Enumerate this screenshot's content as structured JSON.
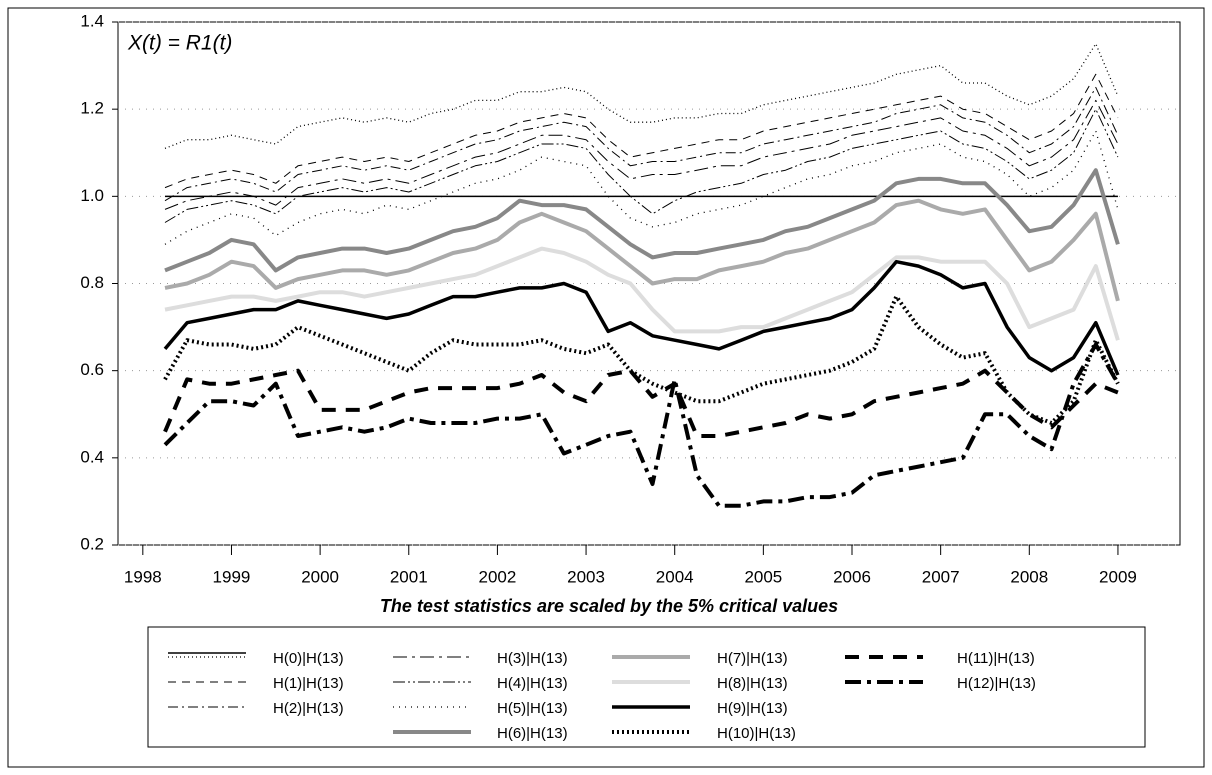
{
  "chart_data": {
    "type": "line",
    "annotation": "X(t) = R1(t)",
    "xlabel": "The test statistics are scaled by the 5% critical values",
    "xlim": [
      1997.72,
      2009.7
    ],
    "xticks": [
      1998,
      1999,
      2000,
      2001,
      2002,
      2003,
      2004,
      2005,
      2006,
      2007,
      2008,
      2009
    ],
    "ylim": [
      0.2,
      1.4
    ],
    "yticks": [
      0.2,
      0.4,
      0.6,
      0.8,
      {
        "value": 1.0,
        "label": "1.0"
      },
      1.2,
      1.4
    ],
    "grid": true,
    "reference_line": 1,
    "x": [
      1998.25,
      1998.5,
      1998.75,
      1999,
      1999.25,
      1999.5,
      1999.75,
      2000,
      2000.25,
      2000.5,
      2000.75,
      2001,
      2001.25,
      2001.5,
      2001.75,
      2002,
      2002.25,
      2002.5,
      2002.75,
      2003,
      2003.25,
      2003.5,
      2003.75,
      2004,
      2004.25,
      2004.5,
      2004.75,
      2005,
      2005.25,
      2005.5,
      2005.75,
      2006,
      2006.25,
      2006.5,
      2006.75,
      2007,
      2007.25,
      2007.5,
      2007.75,
      2008,
      2008.25,
      2008.5,
      2008.75,
      2009
    ],
    "series": [
      {
        "name": "H(0)|H(13)",
        "color": "#000000",
        "dash": "1,3",
        "width": 1.3,
        "values": [
          1.11,
          1.13,
          1.13,
          1.14,
          1.13,
          1.12,
          1.16,
          1.17,
          1.18,
          1.17,
          1.18,
          1.17,
          1.19,
          1.2,
          1.22,
          1.22,
          1.24,
          1.24,
          1.25,
          1.24,
          1.2,
          1.17,
          1.17,
          1.18,
          1.18,
          1.19,
          1.19,
          1.21,
          1.22,
          1.23,
          1.24,
          1.25,
          1.26,
          1.28,
          1.29,
          1.3,
          1.26,
          1.26,
          1.23,
          1.21,
          1.23,
          1.27,
          1.35,
          1.23
        ]
      },
      {
        "name": "H(1)|H(13)",
        "color": "#000000",
        "dash": "8,6",
        "width": 1,
        "values": [
          1.02,
          1.04,
          1.05,
          1.06,
          1.05,
          1.03,
          1.07,
          1.08,
          1.09,
          1.08,
          1.09,
          1.08,
          1.1,
          1.12,
          1.14,
          1.15,
          1.17,
          1.18,
          1.19,
          1.18,
          1.13,
          1.09,
          1.1,
          1.11,
          1.12,
          1.13,
          1.13,
          1.15,
          1.16,
          1.17,
          1.18,
          1.19,
          1.2,
          1.21,
          1.22,
          1.23,
          1.2,
          1.19,
          1.16,
          1.13,
          1.15,
          1.19,
          1.28,
          1.18
        ]
      },
      {
        "name": "H(2)|H(13)",
        "color": "#000000",
        "dash": "10,4,2,4",
        "width": 1,
        "values": [
          0.99,
          1.02,
          1.03,
          1.04,
          1.03,
          1.01,
          1.05,
          1.06,
          1.07,
          1.06,
          1.07,
          1.06,
          1.08,
          1.1,
          1.12,
          1.13,
          1.15,
          1.16,
          1.17,
          1.16,
          1.11,
          1.07,
          1.08,
          1.08,
          1.09,
          1.1,
          1.1,
          1.12,
          1.13,
          1.14,
          1.15,
          1.16,
          1.17,
          1.19,
          1.2,
          1.21,
          1.18,
          1.17,
          1.14,
          1.1,
          1.12,
          1.16,
          1.25,
          1.14
        ]
      },
      {
        "name": "H(3)|H(13)",
        "color": "#000000",
        "dash": "14,5,3,5",
        "width": 1,
        "values": [
          0.97,
          0.99,
          1.0,
          1.01,
          1.0,
          0.98,
          1.02,
          1.03,
          1.04,
          1.03,
          1.04,
          1.03,
          1.05,
          1.07,
          1.09,
          1.1,
          1.12,
          1.14,
          1.14,
          1.13,
          1.08,
          1.04,
          1.05,
          1.05,
          1.06,
          1.07,
          1.07,
          1.09,
          1.1,
          1.11,
          1.12,
          1.14,
          1.15,
          1.16,
          1.17,
          1.18,
          1.15,
          1.14,
          1.11,
          1.07,
          1.09,
          1.13,
          1.22,
          1.12
        ]
      },
      {
        "name": "H(4)|H(13)",
        "color": "#000000",
        "dash": "12,3,2,3,2,3",
        "width": 1,
        "values": [
          0.94,
          0.97,
          0.98,
          0.99,
          0.98,
          0.96,
          1.0,
          1.01,
          1.02,
          1.01,
          1.02,
          1.01,
          1.03,
          1.05,
          1.07,
          1.08,
          1.1,
          1.12,
          1.12,
          1.11,
          1.05,
          1.0,
          0.96,
          0.99,
          1.01,
          1.02,
          1.03,
          1.05,
          1.06,
          1.08,
          1.09,
          1.11,
          1.12,
          1.13,
          1.14,
          1.15,
          1.12,
          1.11,
          1.08,
          1.04,
          1.06,
          1.1,
          1.2,
          1.09
        ]
      },
      {
        "name": "H(5)|H(13)",
        "color": "#000000",
        "dash": "1,5",
        "width": 1.3,
        "values": [
          0.89,
          0.92,
          0.94,
          0.96,
          0.95,
          0.91,
          0.94,
          0.96,
          0.97,
          0.96,
          0.98,
          0.97,
          0.99,
          1.01,
          1.03,
          1.04,
          1.06,
          1.09,
          1.08,
          1.07,
          1.0,
          0.95,
          0.93,
          0.94,
          0.96,
          0.97,
          0.98,
          1.0,
          1.02,
          1.04,
          1.05,
          1.07,
          1.08,
          1.1,
          1.11,
          1.12,
          1.09,
          1.08,
          1.05,
          1.0,
          1.02,
          1.06,
          1.15,
          0.97
        ]
      },
      {
        "name": "H(6)|H(13)",
        "color": "#888888",
        "dash": "",
        "width": 4,
        "values": [
          0.83,
          0.85,
          0.87,
          0.9,
          0.89,
          0.83,
          0.86,
          0.87,
          0.88,
          0.88,
          0.87,
          0.88,
          0.9,
          0.92,
          0.93,
          0.95,
          0.99,
          0.98,
          0.98,
          0.97,
          0.93,
          0.89,
          0.86,
          0.87,
          0.87,
          0.88,
          0.89,
          0.9,
          0.92,
          0.93,
          0.95,
          0.97,
          0.99,
          1.03,
          1.04,
          1.04,
          1.03,
          1.03,
          0.98,
          0.92,
          0.93,
          0.98,
          1.06,
          0.89
        ]
      },
      {
        "name": "H(7)|H(13)",
        "color": "#aaaaaa",
        "dash": "",
        "width": 4,
        "values": [
          0.79,
          0.8,
          0.82,
          0.85,
          0.84,
          0.79,
          0.81,
          0.82,
          0.83,
          0.83,
          0.82,
          0.83,
          0.85,
          0.87,
          0.88,
          0.9,
          0.94,
          0.96,
          0.94,
          0.92,
          0.88,
          0.84,
          0.8,
          0.81,
          0.81,
          0.83,
          0.84,
          0.85,
          0.87,
          0.88,
          0.9,
          0.92,
          0.94,
          0.98,
          0.99,
          0.97,
          0.96,
          0.97,
          0.9,
          0.83,
          0.85,
          0.9,
          0.96,
          0.76
        ]
      },
      {
        "name": "H(8)|H(13)",
        "color": "#dddddd",
        "dash": "",
        "width": 4,
        "values": [
          0.74,
          0.75,
          0.76,
          0.77,
          0.77,
          0.76,
          0.77,
          0.78,
          0.78,
          0.77,
          0.78,
          0.79,
          0.8,
          0.81,
          0.82,
          0.84,
          0.86,
          0.88,
          0.87,
          0.85,
          0.82,
          0.8,
          0.74,
          0.69,
          0.69,
          0.69,
          0.7,
          0.7,
          0.72,
          0.74,
          0.76,
          0.78,
          0.82,
          0.86,
          0.86,
          0.85,
          0.85,
          0.85,
          0.8,
          0.7,
          0.72,
          0.74,
          0.84,
          0.67
        ]
      },
      {
        "name": "H(9)|H(13)",
        "color": "#000000",
        "dash": "",
        "width": 3.5,
        "values": [
          0.65,
          0.71,
          0.72,
          0.73,
          0.74,
          0.74,
          0.76,
          0.75,
          0.74,
          0.73,
          0.72,
          0.73,
          0.75,
          0.77,
          0.77,
          0.78,
          0.79,
          0.79,
          0.8,
          0.78,
          0.69,
          0.71,
          0.68,
          0.67,
          0.66,
          0.65,
          0.67,
          0.69,
          0.7,
          0.71,
          0.72,
          0.74,
          0.79,
          0.85,
          0.84,
          0.82,
          0.79,
          0.8,
          0.7,
          0.63,
          0.6,
          0.63,
          0.71,
          0.59
        ]
      },
      {
        "name": "H(10)|H(13)",
        "color": "#000000",
        "dash": "2,3",
        "width": 4,
        "values": [
          0.58,
          0.67,
          0.66,
          0.66,
          0.65,
          0.66,
          0.7,
          0.68,
          0.66,
          0.64,
          0.62,
          0.6,
          0.64,
          0.67,
          0.66,
          0.66,
          0.66,
          0.67,
          0.65,
          0.64,
          0.66,
          0.6,
          0.57,
          0.55,
          0.53,
          0.53,
          0.55,
          0.57,
          0.58,
          0.59,
          0.6,
          0.62,
          0.65,
          0.77,
          0.7,
          0.66,
          0.63,
          0.64,
          0.55,
          0.5,
          0.48,
          0.53,
          0.67,
          0.57
        ]
      },
      {
        "name": "H(11)|H(13)",
        "color": "#000000",
        "dash": "14,10",
        "width": 4,
        "values": [
          0.46,
          0.58,
          0.57,
          0.57,
          0.58,
          0.59,
          0.6,
          0.51,
          0.51,
          0.51,
          0.53,
          0.55,
          0.56,
          0.56,
          0.56,
          0.56,
          0.57,
          0.59,
          0.55,
          0.53,
          0.59,
          0.6,
          0.54,
          0.57,
          0.45,
          0.45,
          0.46,
          0.47,
          0.48,
          0.5,
          0.49,
          0.5,
          0.53,
          0.54,
          0.55,
          0.56,
          0.57,
          0.6,
          0.55,
          0.5,
          0.47,
          0.52,
          0.57,
          0.55
        ]
      },
      {
        "name": "H(12)|H(13)",
        "color": "#000000",
        "dash": "16,6,4,6",
        "width": 4,
        "values": [
          0.43,
          0.48,
          0.53,
          0.53,
          0.52,
          0.57,
          0.45,
          0.46,
          0.47,
          0.46,
          0.47,
          0.49,
          0.48,
          0.48,
          0.48,
          0.49,
          0.49,
          0.5,
          0.41,
          0.43,
          0.45,
          0.46,
          0.34,
          0.58,
          0.36,
          0.29,
          0.29,
          0.3,
          0.3,
          0.31,
          0.31,
          0.32,
          0.36,
          0.37,
          0.38,
          0.39,
          0.4,
          0.5,
          0.5,
          0.45,
          0.42,
          0.57,
          0.66,
          0.57
        ]
      }
    ]
  }
}
